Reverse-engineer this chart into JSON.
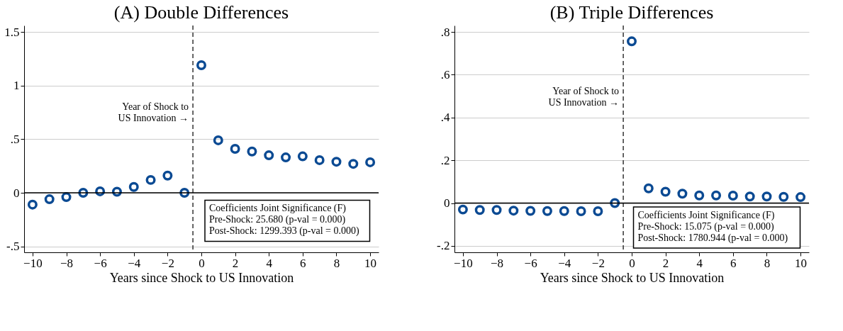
{
  "chart_data": [
    {
      "type": "scatter",
      "title": "(A) Double Differences",
      "xlabel": "Years since Shock to US Innovation",
      "x": [
        -10,
        -9,
        -8,
        -7,
        -6,
        -5,
        -4,
        -3,
        -2,
        -1,
        0,
        1,
        2,
        3,
        4,
        5,
        6,
        7,
        8,
        9,
        10
      ],
      "series": [
        {
          "color": "#0b4a93",
          "values": [
            -0.11,
            -0.06,
            -0.04,
            0.0,
            0.014,
            0.01,
            0.055,
            0.12,
            0.16,
            0.0,
            1.19,
            0.49,
            0.41,
            0.385,
            0.35,
            0.33,
            0.34,
            0.305,
            0.29,
            0.27,
            0.285
          ]
        }
      ],
      "xlim": [
        -10.5,
        10.5
      ],
      "xticks": [
        -10,
        -8,
        -6,
        -4,
        -2,
        0,
        2,
        4,
        6,
        8,
        10
      ],
      "ylim": [
        -0.555,
        1.56
      ],
      "yticks": [
        {
          "value": -0.5,
          "label": "-.5"
        },
        0,
        {
          "value": 0.5,
          "label": ".5"
        },
        1,
        1.5
      ],
      "ref_lines": [
        {
          "axis": "x",
          "value": -0.5,
          "label": "Year of Shock to\nUS Innovation →",
          "color": "#333333",
          "line_style": "dashed"
        },
        {
          "axis": "y",
          "value": 0,
          "color": "#000000",
          "line_style": "solid"
        }
      ],
      "annotations": [
        "Coefficients Joint Significance (F)\nPre-Shock: 25.680 (p-val = 0.000)\nPost-Shock: 1299.393 (p-val = 0.000)"
      ],
      "grid": "y",
      "marker": "circle"
    },
    {
      "type": "scatter",
      "title": "(B) Triple Differences",
      "xlabel": "Years since Shock to US Innovation",
      "x": [
        -10,
        -9,
        -8,
        -7,
        -6,
        -5,
        -4,
        -3,
        -2,
        -1,
        0,
        1,
        2,
        3,
        4,
        5,
        6,
        7,
        8,
        9,
        10
      ],
      "series": [
        {
          "color": "#0b4a93",
          "values": [
            -0.03,
            -0.032,
            -0.032,
            -0.035,
            -0.036,
            -0.037,
            -0.037,
            -0.038,
            -0.038,
            0.0,
            0.756,
            0.069,
            0.053,
            0.044,
            0.036,
            0.036,
            0.035,
            0.031,
            0.031,
            0.029,
            0.028
          ]
        }
      ],
      "xlim": [
        -10.5,
        10.5
      ],
      "xticks": [
        -10,
        -8,
        -6,
        -4,
        -2,
        0,
        2,
        4,
        6,
        8,
        10
      ],
      "ylim": [
        -0.23,
        0.83
      ],
      "yticks": [
        {
          "value": -0.2,
          "label": "-.2"
        },
        0,
        {
          "value": 0.2,
          "label": ".2"
        },
        {
          "value": 0.4,
          "label": ".4"
        },
        {
          "value": 0.6,
          "label": ".6"
        },
        {
          "value": 0.8,
          "label": ".8"
        }
      ],
      "ref_lines": [
        {
          "axis": "x",
          "value": -0.5,
          "label": "Year of Shock to\nUS Innovation →",
          "color": "#333333",
          "line_style": "dashed"
        },
        {
          "axis": "y",
          "value": 0,
          "color": "#000000",
          "line_style": "solid"
        }
      ],
      "annotations": [
        "Coefficients Joint Significance (F)\nPre-Shock: 15.075 (p-val = 0.000)\nPost-Shock: 1780.944 (p-val = 0.000)"
      ],
      "grid": "y",
      "marker": "circle"
    }
  ]
}
